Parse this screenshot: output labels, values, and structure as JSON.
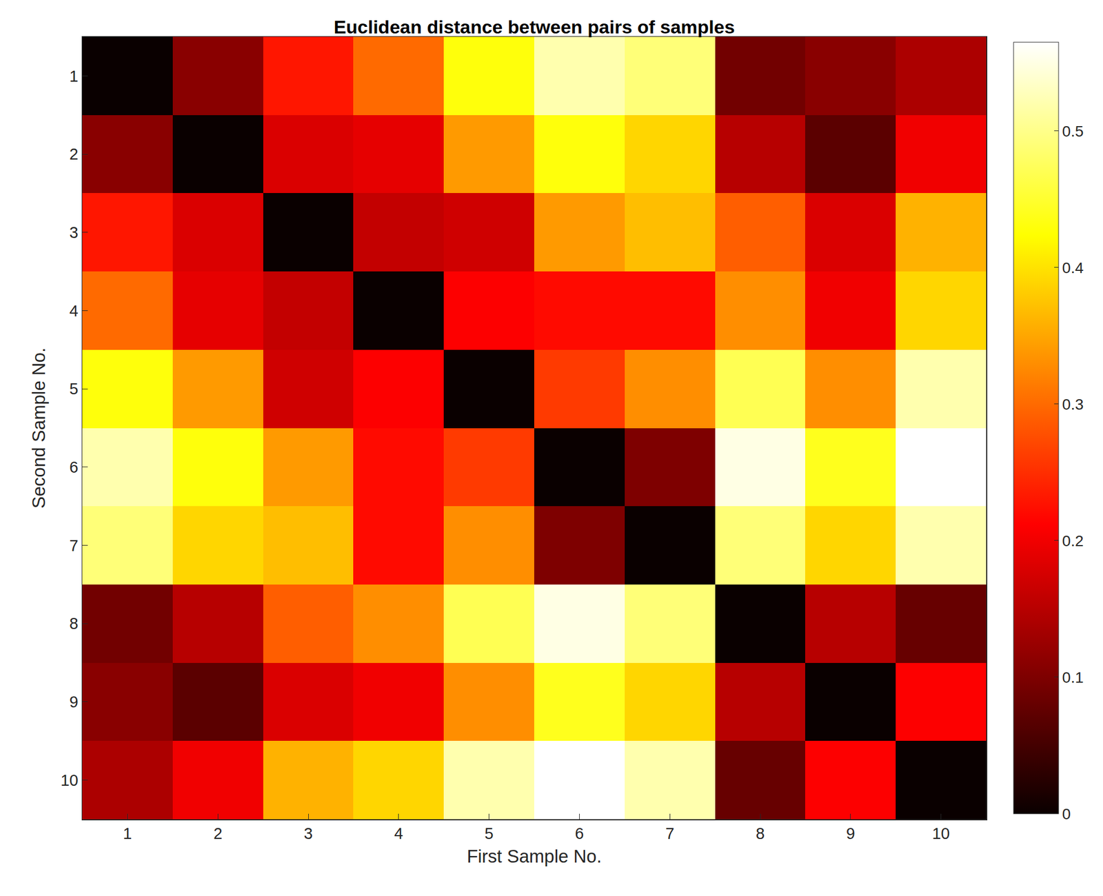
{
  "chart_data": {
    "type": "heatmap",
    "title": "Euclidean distance between pairs of samples",
    "x_label": "First Sample No.",
    "y_label": "Second Sample No.",
    "x": [
      1,
      2,
      3,
      4,
      5,
      6,
      7,
      8,
      9,
      10
    ],
    "y": [
      1,
      2,
      3,
      4,
      5,
      6,
      7,
      8,
      9,
      10
    ],
    "xlim": [
      0.5,
      10.5
    ],
    "ylim": [
      10.5,
      0.5
    ],
    "xticks": [
      1,
      2,
      3,
      4,
      5,
      6,
      7,
      8,
      9,
      10
    ],
    "yticks": [
      1,
      2,
      3,
      4,
      5,
      6,
      7,
      8,
      9,
      10
    ],
    "cells": [
      [
        0,
        0.11,
        0.23,
        0.3,
        0.43,
        0.52,
        0.49,
        0.09,
        0.11,
        0.14
      ],
      [
        0.11,
        0,
        0.18,
        0.19,
        0.34,
        0.43,
        0.39,
        0.15,
        0.07,
        0.2
      ],
      [
        0.23,
        0.18,
        0,
        0.16,
        0.17,
        0.34,
        0.37,
        0.29,
        0.18,
        0.36
      ],
      [
        0.3,
        0.19,
        0.16,
        0,
        0.21,
        0.22,
        0.22,
        0.33,
        0.2,
        0.39
      ],
      [
        0.43,
        0.34,
        0.17,
        0.21,
        0,
        0.26,
        0.33,
        0.47,
        0.33,
        0.52
      ],
      [
        0.52,
        0.43,
        0.34,
        0.22,
        0.26,
        0,
        0.1,
        0.55,
        0.44,
        0.565
      ],
      [
        0.49,
        0.39,
        0.37,
        0.22,
        0.33,
        0.1,
        0,
        0.49,
        0.39,
        0.52
      ],
      [
        0.09,
        0.15,
        0.29,
        0.33,
        0.47,
        0.55,
        0.49,
        0,
        0.15,
        0.08
      ],
      [
        0.11,
        0.07,
        0.18,
        0.2,
        0.33,
        0.44,
        0.39,
        0.15,
        0,
        0.21
      ],
      [
        0.14,
        0.2,
        0.36,
        0.39,
        0.52,
        0.565,
        0.52,
        0.08,
        0.21,
        0
      ]
    ],
    "colorbar_lim": [
      0,
      0.565
    ],
    "colorbar_ticks": [
      0,
      0.1,
      0.2,
      0.3,
      0.4,
      0.5
    ]
  }
}
